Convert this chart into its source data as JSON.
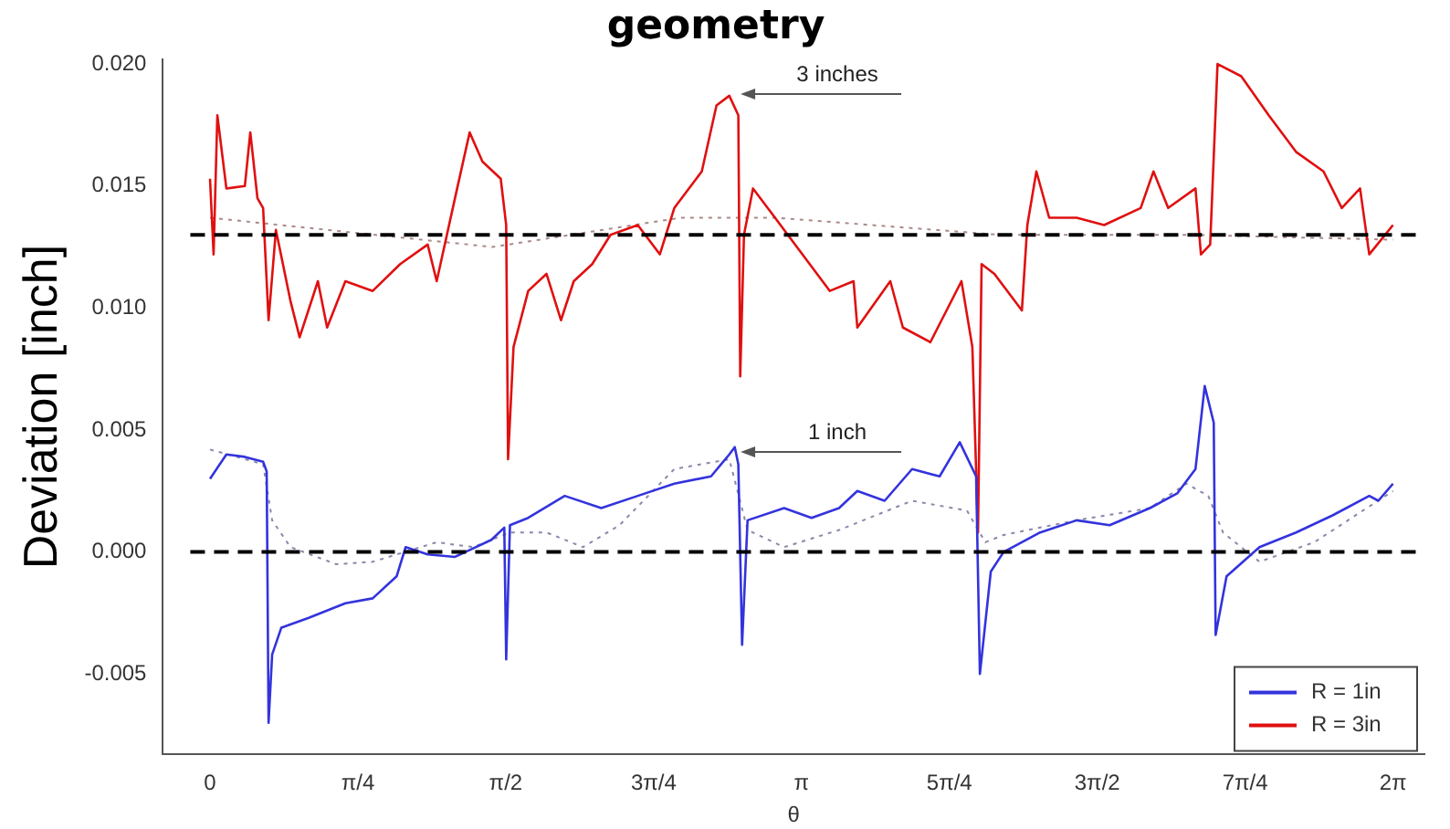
{
  "chart_data": {
    "type": "line",
    "title": "geometry",
    "xlabel": "θ",
    "ylabel": "Deviation [inch]",
    "xlim": [
      -0.25,
      6.45
    ],
    "ylim": [
      -0.0083,
      0.0202
    ],
    "xticks": [
      {
        "value": 0,
        "label": "0"
      },
      {
        "value": 0.7854,
        "label": "π/4"
      },
      {
        "value": 1.5708,
        "label": "π/2"
      },
      {
        "value": 2.3562,
        "label": "3π/4"
      },
      {
        "value": 3.1416,
        "label": "π"
      },
      {
        "value": 3.927,
        "label": "5π/4"
      },
      {
        "value": 4.7124,
        "label": "3π/2"
      },
      {
        "value": 5.4978,
        "label": "7π/4"
      },
      {
        "value": 6.2832,
        "label": "2π"
      }
    ],
    "yticks": [
      {
        "value": -0.005,
        "label": "-0.005"
      },
      {
        "value": 0,
        "label": "0.000"
      },
      {
        "value": 0.005,
        "label": "0.005"
      },
      {
        "value": 0.01,
        "label": "0.010"
      },
      {
        "value": 0.015,
        "label": "0.015"
      },
      {
        "value": 0.02,
        "label": "0.020"
      }
    ],
    "grid": false,
    "legend": "bottom right",
    "marker": "none",
    "series": [
      {
        "name": "R = 1in",
        "color": "#3333dd",
        "line_style": "solid",
        "x": [
          0,
          0.087,
          0.185,
          0.282,
          0.301,
          0.311,
          0.33,
          0.379,
          0.524,
          0.719,
          0.864,
          0.991,
          1.039,
          1.156,
          1.301,
          1.495,
          1.563,
          1.573,
          1.593,
          1.69,
          1.884,
          2.078,
          2.272,
          2.466,
          2.661,
          2.758,
          2.787,
          2.806,
          2.826,
          2.855,
          3.049,
          3.195,
          3.341,
          3.438,
          3.583,
          3.729,
          3.875,
          3.982,
          4.069,
          4.089,
          4.147,
          4.215,
          4.409,
          4.603,
          4.778,
          4.992,
          5.137,
          5.234,
          5.283,
          5.331,
          5.341,
          5.399,
          5.574,
          5.768,
          5.962,
          6.157,
          6.205,
          6.283
        ],
        "values": [
          0.003,
          0.004,
          0.0039,
          0.0037,
          0.0033,
          -0.007,
          -0.0042,
          -0.0031,
          -0.0027,
          -0.0021,
          -0.0019,
          -0.001,
          0.0002,
          -0.0001,
          -0.0002,
          0.0005,
          0.001,
          -0.0044,
          0.0011,
          0.0014,
          0.0023,
          0.0018,
          0.0023,
          0.0028,
          0.0031,
          0.004,
          0.0043,
          0.0036,
          -0.0038,
          0.0013,
          0.0018,
          0.0014,
          0.0018,
          0.0025,
          0.0021,
          0.0034,
          0.0031,
          0.0045,
          0.0031,
          -0.005,
          -0.0008,
          0,
          0.0008,
          0.0013,
          0.0011,
          0.0018,
          0.0024,
          0.0034,
          0.0068,
          0.0053,
          -0.0034,
          -0.001,
          0.0002,
          0.0008,
          0.0015,
          0.0023,
          0.0021,
          0.0028
        ]
      },
      {
        "name": "R = 3in",
        "color": "#e01010",
        "line_style": "solid",
        "x": [
          0,
          0.019,
          0.039,
          0.087,
          0.185,
          0.214,
          0.252,
          0.282,
          0.311,
          0.35,
          0.427,
          0.476,
          0.573,
          0.622,
          0.719,
          0.864,
          1.01,
          1.156,
          1.204,
          1.301,
          1.379,
          1.447,
          1.544,
          1.573,
          1.583,
          1.612,
          1.69,
          1.787,
          1.864,
          1.932,
          2.03,
          2.127,
          2.272,
          2.389,
          2.466,
          2.612,
          2.69,
          2.758,
          2.806,
          2.816,
          2.836,
          2.884,
          3.001,
          3.146,
          3.292,
          3.418,
          3.438,
          3.613,
          3.68,
          3.826,
          3.991,
          4.049,
          4.079,
          4.098,
          4.166,
          4.312,
          4.341,
          4.389,
          4.457,
          4.603,
          4.749,
          4.943,
          5.011,
          5.089,
          5.234,
          5.263,
          5.312,
          5.351,
          5.477,
          5.623,
          5.768,
          5.914,
          6.011,
          6.108,
          6.157,
          6.283
        ],
        "values": [
          0.0153,
          0.0122,
          0.0179,
          0.0149,
          0.015,
          0.0172,
          0.0145,
          0.0141,
          0.0095,
          0.0132,
          0.0103,
          0.0088,
          0.0111,
          0.0092,
          0.0111,
          0.0107,
          0.0118,
          0.0126,
          0.0111,
          0.0145,
          0.0172,
          0.016,
          0.0153,
          0.0134,
          0.0038,
          0.0084,
          0.0107,
          0.0114,
          0.0095,
          0.0111,
          0.0118,
          0.013,
          0.0134,
          0.0122,
          0.0141,
          0.0156,
          0.0183,
          0.0187,
          0.0179,
          0.0072,
          0.013,
          0.0149,
          0.0137,
          0.0122,
          0.0107,
          0.0111,
          0.0092,
          0.0111,
          0.0092,
          0.0086,
          0.0111,
          0.0084,
          0.0008,
          0.0118,
          0.0114,
          0.0099,
          0.0134,
          0.0156,
          0.0137,
          0.0137,
          0.0134,
          0.0141,
          0.0156,
          0.0141,
          0.0149,
          0.0122,
          0.0126,
          0.02,
          0.0195,
          0.0179,
          0.0164,
          0.0156,
          0.0141,
          0.0149,
          0.0122,
          0.0134
        ]
      },
      {
        "color": "#8888aa",
        "line_style": "dotted",
        "x": [
          0,
          0.282,
          0.33,
          0.427,
          0.67,
          0.864,
          1.204,
          1.398,
          1.593,
          1.787,
          1.981,
          2.175,
          2.466,
          2.758,
          2.855,
          3.049,
          3.341,
          3.729,
          4.02,
          4.118,
          4.215,
          4.603,
          4.992,
          5.186,
          5.302,
          5.38,
          5.574,
          5.865,
          6.283
        ],
        "values": [
          0.0042,
          0.0036,
          0.0013,
          0.0002,
          -0.0005,
          -0.0004,
          0.0004,
          0.0002,
          0.0008,
          0.0008,
          0.0002,
          0.0011,
          0.0034,
          0.0038,
          0.0009,
          0.0002,
          0.0009,
          0.0021,
          0.0017,
          0.0004,
          0.0007,
          0.0013,
          0.0018,
          0.0028,
          0.0023,
          0.0008,
          -0.0004,
          0.0004,
          0.0025
        ]
      },
      {
        "color": "#aa8888",
        "line_style": "dotted",
        "x": [
          0,
          1.5,
          2.5,
          3.0,
          4.2,
          5.2,
          6.283
        ],
        "values": [
          0.0137,
          0.0125,
          0.0137,
          0.0137,
          0.013,
          0.013,
          0.0128
        ]
      }
    ],
    "ref_lines": [
      {
        "axis": "y",
        "value": 0.013,
        "line_style": "dashed",
        "color": "#000000"
      },
      {
        "axis": "y",
        "value": 0,
        "line_style": "dashed",
        "color": "#000000"
      }
    ],
    "annotations": [
      "3 inches",
      "1 inch"
    ]
  }
}
